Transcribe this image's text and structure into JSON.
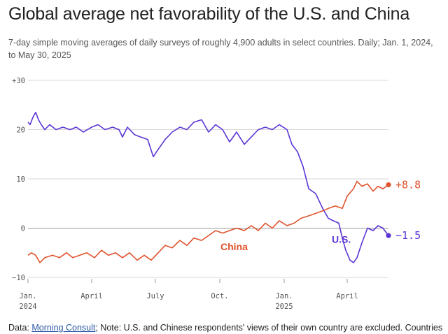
{
  "title": "Global average net favorability of the U.S. and China",
  "subtitle": "7-day simple moving averages of daily surveys of roughly 4,900 adults in select countries. Daily; Jan. 1, 2024, to May 30, 2025",
  "footnote": {
    "prefix": "Data: ",
    "source": "Morning Consult",
    "rest": "; Note: U.S. and Chinese respondents' views of their own country are excluded. Countries"
  },
  "colors": {
    "us": "#5b35d5",
    "china": "#e0532c",
    "grid": "#d9d9d9",
    "zero": "#9a9a9a"
  },
  "chart_data": {
    "type": "line",
    "x_range": [
      "2024-01-01",
      "2025-05-30"
    ],
    "ylim": [
      -10,
      30
    ],
    "y_ticks": [
      {
        "value": 30,
        "label": "+30"
      },
      {
        "value": 20,
        "label": "20"
      },
      {
        "value": 10,
        "label": "10"
      },
      {
        "value": 0,
        "label": "0"
      },
      {
        "value": -10,
        "label": "−10"
      }
    ],
    "x_ticks": [
      {
        "date": "2024-01-01",
        "label": "Jan.",
        "label2": "2024"
      },
      {
        "date": "2024-04-01",
        "label": "April",
        "label2": ""
      },
      {
        "date": "2024-07-01",
        "label": "July",
        "label2": ""
      },
      {
        "date": "2024-10-01",
        "label": "Oct.",
        "label2": ""
      },
      {
        "date": "2025-01-01",
        "label": "Jan.",
        "label2": "2025"
      },
      {
        "date": "2025-04-01",
        "label": "April",
        "label2": ""
      }
    ],
    "series": [
      {
        "name": "U.S.",
        "end_label": "−1.5",
        "points": [
          [
            "2024-01-01",
            21.5
          ],
          [
            "2024-01-04",
            21.0
          ],
          [
            "2024-01-08",
            22.5
          ],
          [
            "2024-01-12",
            23.5
          ],
          [
            "2024-01-16",
            22.0
          ],
          [
            "2024-01-20",
            21.0
          ],
          [
            "2024-01-25",
            20.0
          ],
          [
            "2024-02-01",
            21.0
          ],
          [
            "2024-02-10",
            20.0
          ],
          [
            "2024-02-20",
            20.5
          ],
          [
            "2024-03-01",
            20.0
          ],
          [
            "2024-03-10",
            20.5
          ],
          [
            "2024-03-20",
            19.5
          ],
          [
            "2024-04-01",
            20.5
          ],
          [
            "2024-04-10",
            21.0
          ],
          [
            "2024-04-20",
            20.0
          ],
          [
            "2024-05-01",
            20.5
          ],
          [
            "2024-05-10",
            20.0
          ],
          [
            "2024-05-15",
            18.5
          ],
          [
            "2024-05-22",
            20.5
          ],
          [
            "2024-06-01",
            19.0
          ],
          [
            "2024-06-10",
            18.5
          ],
          [
            "2024-06-20",
            18.0
          ],
          [
            "2024-06-28",
            14.5
          ],
          [
            "2024-07-05",
            16.0
          ],
          [
            "2024-07-15",
            18.0
          ],
          [
            "2024-07-25",
            19.5
          ],
          [
            "2024-08-05",
            20.5
          ],
          [
            "2024-08-15",
            20.0
          ],
          [
            "2024-08-25",
            21.5
          ],
          [
            "2024-09-05",
            22.0
          ],
          [
            "2024-09-15",
            19.5
          ],
          [
            "2024-09-25",
            21.0
          ],
          [
            "2024-10-05",
            20.0
          ],
          [
            "2024-10-15",
            17.5
          ],
          [
            "2024-10-25",
            19.5
          ],
          [
            "2024-11-05",
            17.0
          ],
          [
            "2024-11-15",
            18.5
          ],
          [
            "2024-11-25",
            20.0
          ],
          [
            "2024-12-05",
            20.5
          ],
          [
            "2024-12-15",
            20.0
          ],
          [
            "2024-12-25",
            21.0
          ],
          [
            "2025-01-05",
            20.0
          ],
          [
            "2025-01-12",
            17.0
          ],
          [
            "2025-01-20",
            15.5
          ],
          [
            "2025-01-28",
            12.5
          ],
          [
            "2025-02-05",
            8.0
          ],
          [
            "2025-02-15",
            7.0
          ],
          [
            "2025-02-25",
            4.0
          ],
          [
            "2025-03-05",
            2.0
          ],
          [
            "2025-03-12",
            1.5
          ],
          [
            "2025-03-20",
            1.0
          ],
          [
            "2025-03-25",
            -2.0
          ],
          [
            "2025-03-30",
            -4.5
          ],
          [
            "2025-04-05",
            -6.5
          ],
          [
            "2025-04-10",
            -7.0
          ],
          [
            "2025-04-15",
            -6.0
          ],
          [
            "2025-04-22",
            -3.0
          ],
          [
            "2025-04-30",
            0.0
          ],
          [
            "2025-05-08",
            -0.5
          ],
          [
            "2025-05-15",
            0.5
          ],
          [
            "2025-05-22",
            0.0
          ],
          [
            "2025-05-30",
            -1.5
          ]
        ]
      },
      {
        "name": "China",
        "end_label": "+8.8",
        "points": [
          [
            "2024-01-01",
            -5.5
          ],
          [
            "2024-01-06",
            -5.0
          ],
          [
            "2024-01-12",
            -5.5
          ],
          [
            "2024-01-18",
            -7.0
          ],
          [
            "2024-01-25",
            -6.0
          ],
          [
            "2024-02-05",
            -5.5
          ],
          [
            "2024-02-15",
            -6.0
          ],
          [
            "2024-02-25",
            -5.0
          ],
          [
            "2024-03-05",
            -6.0
          ],
          [
            "2024-03-15",
            -5.5
          ],
          [
            "2024-03-25",
            -5.0
          ],
          [
            "2024-04-05",
            -6.0
          ],
          [
            "2024-04-15",
            -4.5
          ],
          [
            "2024-04-25",
            -5.5
          ],
          [
            "2024-05-05",
            -5.0
          ],
          [
            "2024-05-15",
            -6.0
          ],
          [
            "2024-05-25",
            -5.0
          ],
          [
            "2024-06-05",
            -6.5
          ],
          [
            "2024-06-15",
            -5.5
          ],
          [
            "2024-06-25",
            -6.5
          ],
          [
            "2024-07-05",
            -5.0
          ],
          [
            "2024-07-15",
            -3.5
          ],
          [
            "2024-07-25",
            -4.0
          ],
          [
            "2024-08-05",
            -2.5
          ],
          [
            "2024-08-15",
            -3.5
          ],
          [
            "2024-08-25",
            -2.0
          ],
          [
            "2024-09-05",
            -2.5
          ],
          [
            "2024-09-15",
            -1.5
          ],
          [
            "2024-09-25",
            -0.5
          ],
          [
            "2024-10-05",
            -1.0
          ],
          [
            "2024-10-15",
            -0.5
          ],
          [
            "2024-10-25",
            0.0
          ],
          [
            "2024-11-05",
            -0.5
          ],
          [
            "2024-11-15",
            0.5
          ],
          [
            "2024-11-25",
            -0.5
          ],
          [
            "2024-12-05",
            1.0
          ],
          [
            "2024-12-15",
            0.0
          ],
          [
            "2024-12-25",
            1.5
          ],
          [
            "2025-01-05",
            0.5
          ],
          [
            "2025-01-15",
            1.0
          ],
          [
            "2025-01-25",
            2.0
          ],
          [
            "2025-02-05",
            2.5
          ],
          [
            "2025-02-15",
            3.0
          ],
          [
            "2025-02-25",
            3.5
          ],
          [
            "2025-03-05",
            4.0
          ],
          [
            "2025-03-15",
            4.5
          ],
          [
            "2025-03-25",
            4.0
          ],
          [
            "2025-04-01",
            6.5
          ],
          [
            "2025-04-10",
            8.0
          ],
          [
            "2025-04-15",
            9.5
          ],
          [
            "2025-04-22",
            8.5
          ],
          [
            "2025-04-30",
            9.0
          ],
          [
            "2025-05-08",
            7.5
          ],
          [
            "2025-05-15",
            8.5
          ],
          [
            "2025-05-22",
            8.0
          ],
          [
            "2025-05-30",
            8.8
          ]
        ]
      }
    ]
  }
}
